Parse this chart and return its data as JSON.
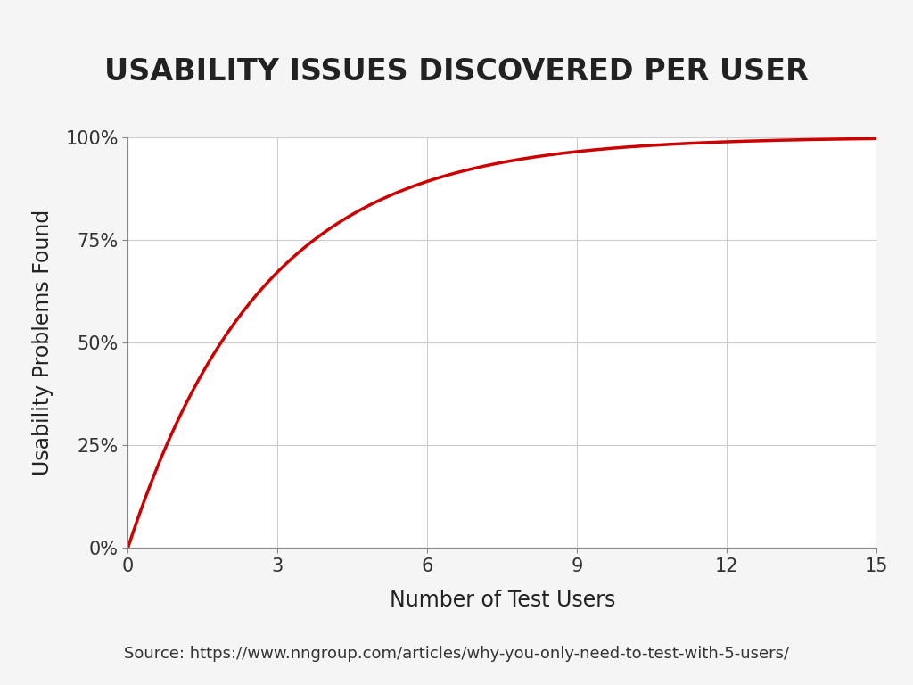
{
  "title": "USABILITY ISSUES DISCOVERED PER USER",
  "xlabel": "Number of Test Users",
  "ylabel": "Usability Problems Found",
  "source_text": "Source: https://www.nngroup.com/articles/why-you-only-need-to-test-with-5-users/",
  "x_min": 0,
  "x_max": 15,
  "x_ticks": [
    0,
    3,
    6,
    9,
    12,
    15
  ],
  "y_min": 0,
  "y_max": 1.0,
  "y_ticks": [
    0.0,
    0.25,
    0.5,
    0.75,
    1.0
  ],
  "y_tick_labels": [
    "0%",
    "25%",
    "50%",
    "75%",
    "100%"
  ],
  "line_color": "#cc0000",
  "line_width": 2.5,
  "background_color": "#f5f5f5",
  "plot_background_color": "#ffffff",
  "title_fontsize": 24,
  "axis_label_fontsize": 17,
  "tick_fontsize": 15,
  "source_fontsize": 13,
  "p": 0.31
}
